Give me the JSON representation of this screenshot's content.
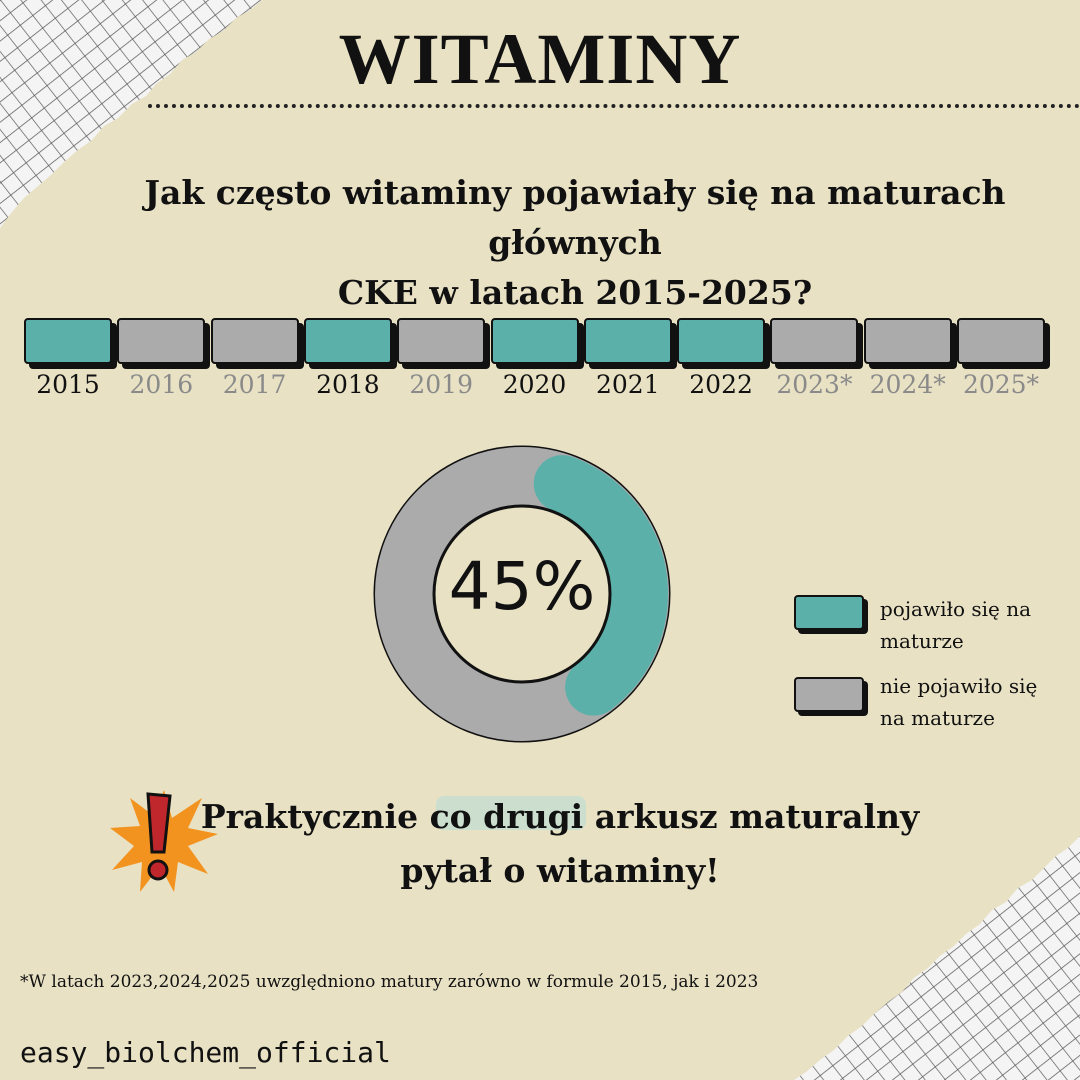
{
  "title": "WITAMINY",
  "question_line1": "Jak często witaminy pojawiały się na maturach głównych",
  "question_line2": "CKE w latach 2015-2025?",
  "chart_data": [
    {
      "type": "table",
      "categories": [
        "2015",
        "2016",
        "2017",
        "2018",
        "2019",
        "2020",
        "2021",
        "2022",
        "2023*",
        "2024*",
        "2025*"
      ],
      "values": [
        1,
        0,
        0,
        1,
        0,
        1,
        1,
        1,
        0,
        0,
        0
      ],
      "value_meaning": {
        "1": "pojawiło się na maturze",
        "0": "nie pojawiło się na maturze"
      }
    },
    {
      "type": "pie",
      "center_label": "45%",
      "slices": [
        {
          "label": "pojawiło się na maturze",
          "value": 45,
          "color": "#5bb0aa"
        },
        {
          "label": "nie pojawiło się na maturze",
          "value": 55,
          "color": "#ababab"
        }
      ]
    }
  ],
  "legend": {
    "item1_line1": "pojawiło się na",
    "item1_line2": "maturze",
    "item2_line1": "nie pojawiło się",
    "item2_line2": "na maturze"
  },
  "conclusion": {
    "part1": "Praktycznie ",
    "highlight": "co drugi",
    "part2": " arkusz maturalny",
    "line2": "pytał o witaminy!"
  },
  "footnote": "*W latach 2023,2024,2025 uwzględniono matury zarówno w formule 2015, jak i 2023",
  "handle": "easy_biolchem_official",
  "colors": {
    "background": "#e8e1c4",
    "teal": "#5bb0aa",
    "gray": "#ababab",
    "muted_text": "#8a8a8a",
    "exclamation_red": "#c0272d",
    "burst_orange": "#f3931f"
  }
}
